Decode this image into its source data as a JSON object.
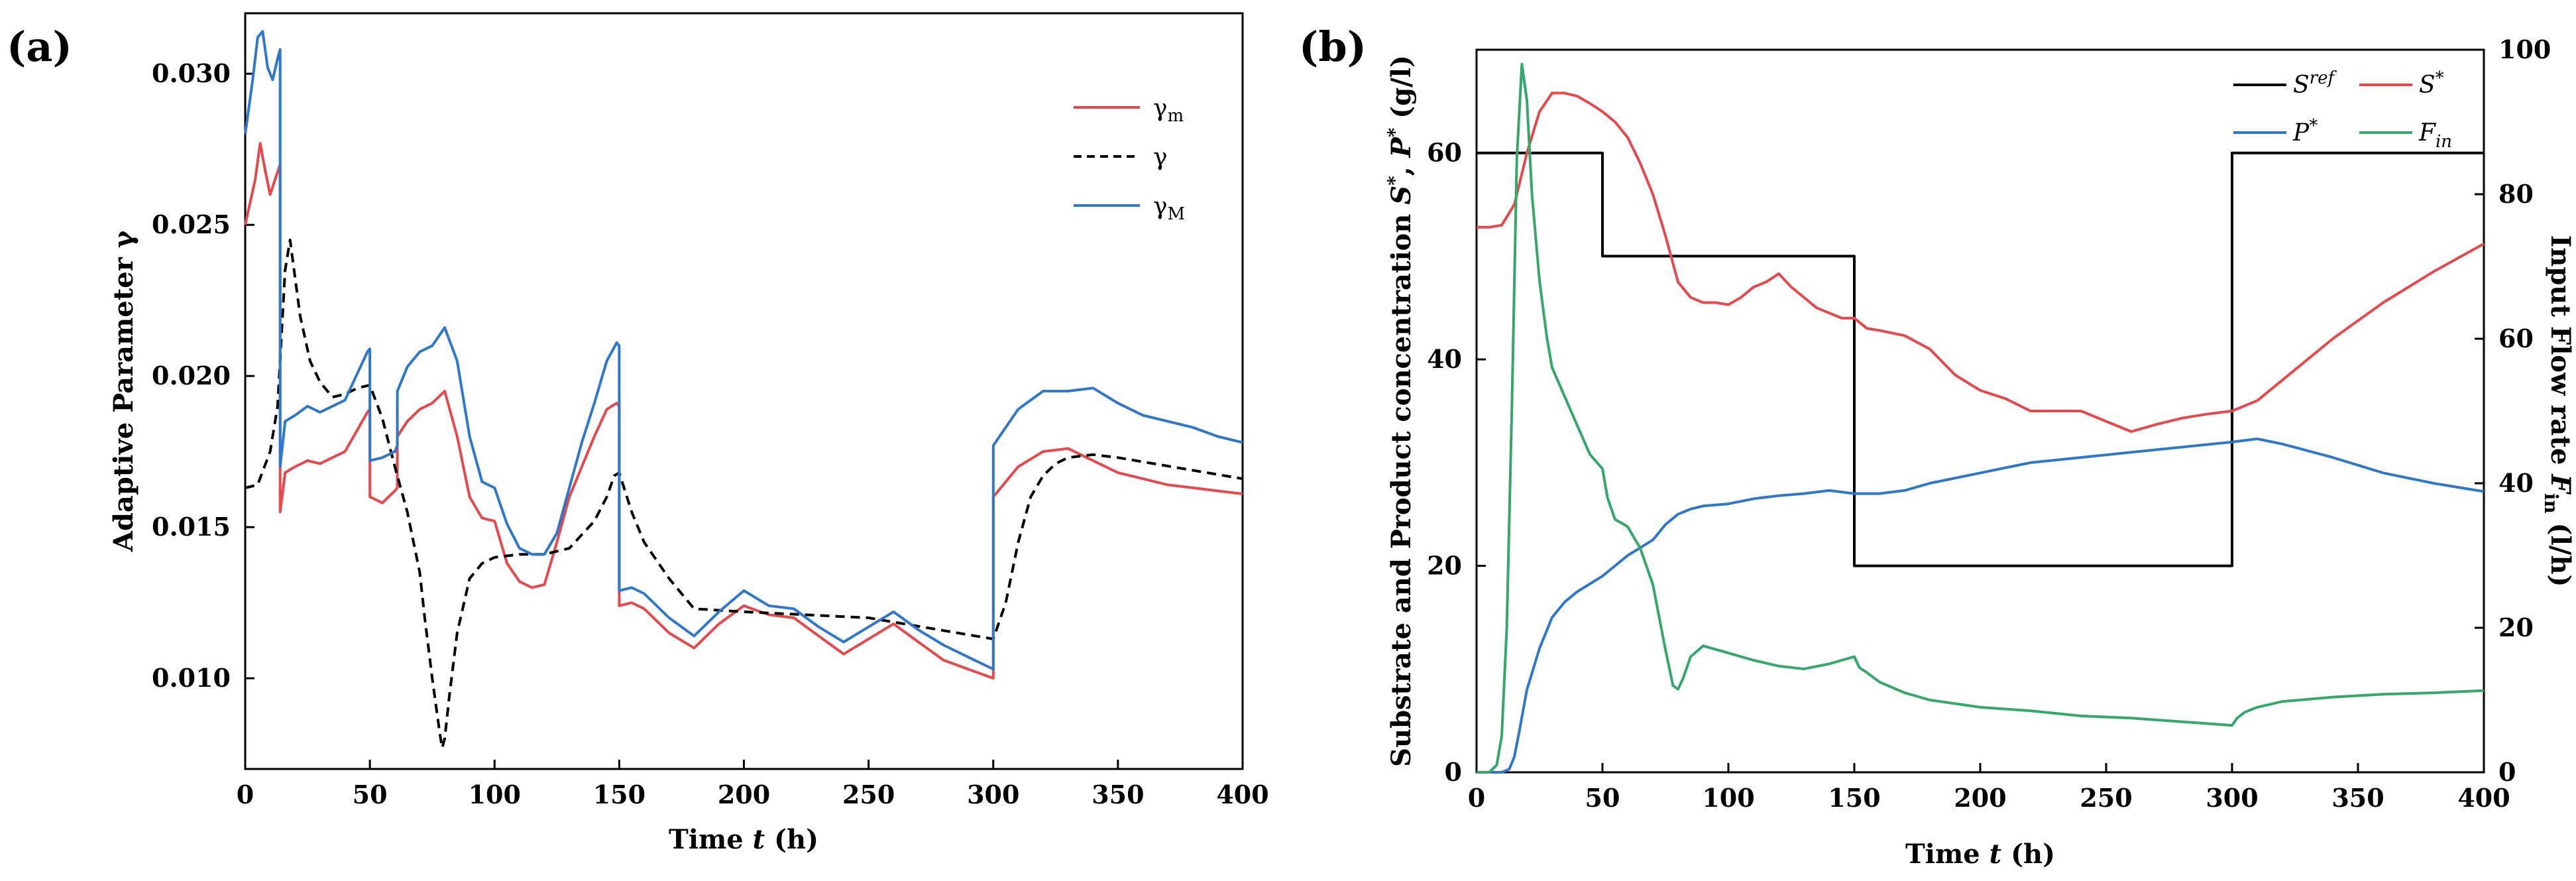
{
  "panels": {
    "a_label": "(a)",
    "b_label": "(b)"
  },
  "chart_data": [
    {
      "type": "line",
      "panel": "a",
      "xlabel": "Time t (h)",
      "ylabel": "Adaptive Parameter γ",
      "xlim": [
        0,
        400
      ],
      "ylim": [
        0.007,
        0.032
      ],
      "xticks": [
        0,
        50,
        100,
        150,
        200,
        250,
        300,
        350,
        400
      ],
      "yticks": [
        0.01,
        0.015,
        0.02,
        0.025,
        0.03
      ],
      "ytick_labels": [
        "0.010",
        "0.015",
        "0.020",
        "0.025",
        "0.030"
      ],
      "legend_position": "top-right",
      "series": [
        {
          "name": "γm",
          "color": "#e8474b",
          "style": "solid",
          "x": [
            0,
            4,
            6,
            8,
            10,
            12,
            14,
            14.01,
            16,
            20,
            25,
            30,
            40,
            49,
            50,
            50.01,
            55,
            60,
            61,
            61.01,
            65,
            70,
            75,
            80,
            85,
            90,
            95,
            100,
            105,
            110,
            115,
            120,
            125,
            130,
            135,
            140,
            145,
            149,
            150,
            150.01,
            155,
            160,
            170,
            180,
            190,
            200,
            210,
            220,
            230,
            240,
            250,
            260,
            270,
            280,
            290,
            300,
            300.01,
            305,
            310,
            320,
            330,
            340,
            350,
            360,
            370,
            380,
            390,
            400
          ],
          "y": [
            0.025,
            0.0265,
            0.0277,
            0.0268,
            0.026,
            0.0265,
            0.027,
            0.0155,
            0.0168,
            0.017,
            0.0172,
            0.0171,
            0.0175,
            0.0188,
            0.0189,
            0.016,
            0.0158,
            0.0162,
            0.0163,
            0.018,
            0.0185,
            0.0189,
            0.0191,
            0.0195,
            0.018,
            0.016,
            0.0153,
            0.0152,
            0.0138,
            0.0132,
            0.013,
            0.0131,
            0.0145,
            0.016,
            0.017,
            0.018,
            0.0189,
            0.0191,
            0.019,
            0.0124,
            0.0125,
            0.0123,
            0.0115,
            0.011,
            0.0118,
            0.0124,
            0.0121,
            0.012,
            0.0114,
            0.0108,
            0.0113,
            0.0118,
            0.0112,
            0.0106,
            0.0103,
            0.01,
            0.016,
            0.0165,
            0.017,
            0.0175,
            0.0176,
            0.0172,
            0.0168,
            0.0166,
            0.0164,
            0.0163,
            0.0162,
            0.0161
          ]
        },
        {
          "name": "γ",
          "color": "#000000",
          "style": "dashed",
          "x": [
            0,
            5,
            10,
            13,
            16,
            18,
            22,
            26,
            30,
            35,
            40,
            45,
            50,
            55,
            60,
            65,
            70,
            72,
            75,
            78,
            79,
            80,
            82,
            85,
            90,
            95,
            100,
            110,
            120,
            130,
            140,
            145,
            148,
            150,
            155,
            160,
            170,
            180,
            200,
            250,
            300,
            305,
            310,
            315,
            320,
            325,
            330,
            340,
            350,
            400
          ],
          "y": [
            0.0163,
            0.0164,
            0.0175,
            0.019,
            0.0235,
            0.0245,
            0.022,
            0.0205,
            0.0198,
            0.0193,
            0.0194,
            0.0196,
            0.0197,
            0.0186,
            0.017,
            0.0155,
            0.0135,
            0.012,
            0.01,
            0.0082,
            0.0077,
            0.008,
            0.0095,
            0.0115,
            0.0133,
            0.0138,
            0.014,
            0.0141,
            0.0141,
            0.0143,
            0.0152,
            0.016,
            0.0167,
            0.0168,
            0.0155,
            0.0145,
            0.0133,
            0.0123,
            0.0122,
            0.012,
            0.0113,
            0.0125,
            0.0145,
            0.016,
            0.0167,
            0.0171,
            0.0173,
            0.0174,
            0.0173,
            0.0166
          ]
        },
        {
          "name": "γM",
          "color": "#2d77cc",
          "style": "solid",
          "x": [
            0,
            3,
            5,
            7,
            9,
            11,
            13,
            14,
            14.01,
            16,
            20,
            25,
            30,
            40,
            49,
            50,
            50.01,
            55,
            60,
            61,
            61.01,
            65,
            70,
            75,
            80,
            85,
            90,
            95,
            100,
            105,
            110,
            115,
            120,
            125,
            130,
            135,
            140,
            145,
            149,
            150,
            150.01,
            155,
            160,
            170,
            180,
            190,
            200,
            210,
            220,
            230,
            240,
            250,
            260,
            270,
            280,
            290,
            300,
            300.01,
            305,
            310,
            320,
            330,
            340,
            350,
            360,
            370,
            380,
            390,
            400
          ],
          "y": [
            0.028,
            0.0298,
            0.0312,
            0.0314,
            0.0302,
            0.0298,
            0.0305,
            0.0308,
            0.017,
            0.0185,
            0.0187,
            0.019,
            0.0188,
            0.0192,
            0.0208,
            0.0209,
            0.0172,
            0.0173,
            0.0175,
            0.0177,
            0.0195,
            0.0203,
            0.0208,
            0.021,
            0.0216,
            0.0205,
            0.018,
            0.0165,
            0.0163,
            0.0151,
            0.0143,
            0.0141,
            0.0141,
            0.0148,
            0.0163,
            0.0178,
            0.0191,
            0.0205,
            0.0211,
            0.021,
            0.0129,
            0.013,
            0.0128,
            0.012,
            0.0114,
            0.0122,
            0.0129,
            0.0124,
            0.0123,
            0.0117,
            0.0112,
            0.0117,
            0.0122,
            0.0116,
            0.0111,
            0.0107,
            0.0103,
            0.0177,
            0.0183,
            0.0189,
            0.0195,
            0.0195,
            0.0196,
            0.0191,
            0.0187,
            0.0185,
            0.0183,
            0.018,
            0.0178
          ]
        }
      ]
    },
    {
      "type": "line",
      "panel": "b",
      "xlabel": "Time t (h)",
      "ylabel": "Substrate and Product concentration S*, P* (g/l)",
      "y2label": "Input Flow rate Fin (l/h)",
      "xlim": [
        0,
        400
      ],
      "ylim": [
        0,
        70
      ],
      "y2lim": [
        0,
        100
      ],
      "xticks": [
        0,
        50,
        100,
        150,
        200,
        250,
        300,
        350,
        400
      ],
      "yticks": [
        0,
        20,
        40,
        60
      ],
      "y2ticks": [
        0,
        20,
        40,
        60,
        80,
        100
      ],
      "legend_position": "top-right",
      "series": [
        {
          "name": "Sref",
          "color": "#000000",
          "axis": "left",
          "step": true,
          "x": [
            0,
            50,
            50,
            150,
            150,
            300,
            300,
            400
          ],
          "y": [
            60,
            60,
            50,
            50,
            20,
            20,
            60,
            60
          ]
        },
        {
          "name": "S*",
          "color": "#e8474b",
          "axis": "left",
          "x": [
            0,
            5,
            10,
            15,
            20,
            25,
            30,
            35,
            40,
            45,
            50,
            55,
            60,
            65,
            70,
            75,
            80,
            85,
            90,
            95,
            100,
            105,
            110,
            115,
            120,
            125,
            130,
            135,
            140,
            145,
            150,
            155,
            160,
            170,
            180,
            190,
            200,
            210,
            220,
            230,
            240,
            250,
            260,
            270,
            280,
            290,
            300,
            310,
            320,
            340,
            360,
            380,
            400
          ],
          "y": [
            52.8,
            52.8,
            53,
            55,
            60,
            64,
            65.8,
            65.8,
            65.5,
            64.8,
            64,
            63,
            61.5,
            59,
            56,
            52,
            47.5,
            46,
            45.5,
            45.5,
            45.3,
            46,
            47,
            47.5,
            48.3,
            47,
            46,
            45,
            44.5,
            44,
            44,
            43,
            42.8,
            42.3,
            41,
            38.5,
            37,
            36.2,
            35,
            35,
            35,
            34,
            33,
            33.7,
            34.3,
            34.7,
            35,
            36,
            38,
            42,
            45.5,
            48.5,
            51.2
          ]
        },
        {
          "name": "P*",
          "color": "#2d77cc",
          "axis": "left",
          "x": [
            0,
            10,
            13,
            15,
            17,
            20,
            25,
            30,
            35,
            40,
            50,
            60,
            70,
            75,
            80,
            85,
            90,
            100,
            110,
            120,
            130,
            140,
            150,
            160,
            170,
            180,
            200,
            220,
            240,
            260,
            280,
            300,
            310,
            320,
            340,
            360,
            380,
            400
          ],
          "y": [
            0,
            0,
            0.3,
            1.5,
            4,
            8,
            12,
            15,
            16.5,
            17.5,
            19,
            21,
            22.5,
            24,
            25,
            25.5,
            25.8,
            26,
            26.5,
            26.8,
            27,
            27.3,
            27,
            27,
            27.3,
            28,
            29,
            30,
            30.5,
            31,
            31.5,
            32,
            32.3,
            31.8,
            30.5,
            29,
            28,
            27.2
          ]
        },
        {
          "name": "Fin",
          "color": "#34a86a",
          "axis": "right",
          "x": [
            0,
            5,
            8,
            10,
            12,
            14,
            16,
            18,
            20,
            22,
            25,
            28,
            30,
            35,
            40,
            45,
            50,
            52,
            55,
            60,
            65,
            70,
            75,
            78,
            80,
            82,
            85,
            90,
            95,
            100,
            110,
            120,
            130,
            140,
            145,
            150,
            152,
            155,
            160,
            170,
            180,
            200,
            220,
            240,
            260,
            280,
            300,
            302,
            305,
            310,
            320,
            340,
            360,
            380,
            400
          ],
          "y": [
            0,
            0,
            1,
            5,
            20,
            50,
            85,
            98,
            93,
            80,
            68,
            60,
            56,
            52,
            48,
            44,
            42,
            38,
            35,
            34,
            31,
            26,
            17,
            12,
            11.5,
            13,
            16,
            17.5,
            17,
            16.5,
            15.5,
            14.7,
            14.3,
            15,
            15.5,
            16,
            14.5,
            13.8,
            12.5,
            11,
            10,
            9,
            8.5,
            7.8,
            7.5,
            7,
            6.5,
            7.5,
            8.3,
            9,
            9.8,
            10.4,
            10.8,
            11,
            11.3
          ]
        }
      ]
    }
  ],
  "legend_a": [
    {
      "symbol": "γ",
      "sub": "m"
    },
    {
      "symbol": "γ",
      "sub": ""
    },
    {
      "symbol": "γ",
      "sub": "M"
    }
  ],
  "legend_b": {
    "sref_symbol": "S",
    "sref_sup": "ref",
    "s_symbol": "S",
    "s_sup": "*",
    "p_symbol": "P",
    "p_sup": "*",
    "f_symbol": "F",
    "f_sub": "in"
  },
  "axis_titles": {
    "a_x_pre": "Time ",
    "a_x_var": "t",
    "a_x_post": " (h)",
    "a_y": "Adaptive Parameter γ",
    "b_x_pre": "Time ",
    "b_x_var": "t",
    "b_x_post": " (h)",
    "b_y_pre": "Substrate and Product concentration ",
    "b_y_S": "S",
    "b_y_sup1": "*",
    "b_y_mid": ", ",
    "b_y_P": "P",
    "b_y_sup2": "*",
    "b_y_post": " (g/l)",
    "b_y2_pre": "Input Flow rate ",
    "b_y2_F": "F",
    "b_y2_sub": "in",
    "b_y2_post": " (l/h)"
  }
}
